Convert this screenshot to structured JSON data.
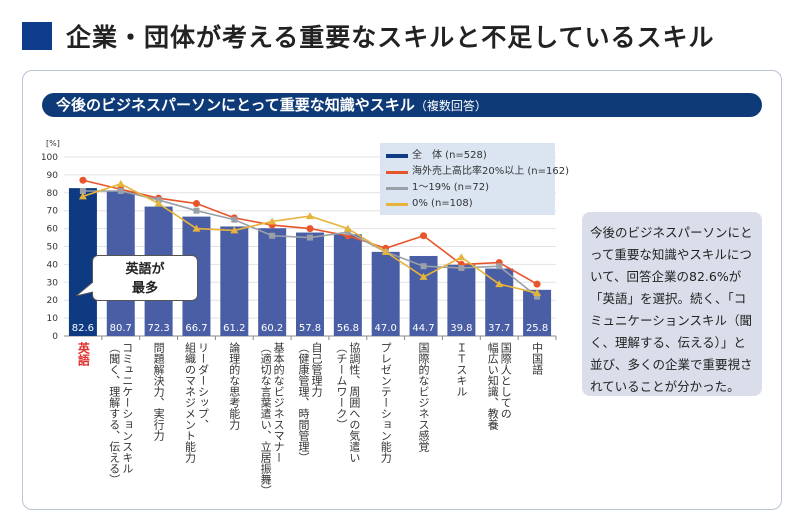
{
  "page_title": "企業・団体が考える重要なスキルと不足しているスキル",
  "section": {
    "title": "今後のビジネスパーソンにとって重要な知識やスキル",
    "suffix": "（複数回答）"
  },
  "callout": {
    "line1": "英語が",
    "line2": "最多"
  },
  "note": "今後のビジネスパーソンにとって重要な知識やスキルについて、回答企業の82.6%が「英語」を選択。続く、「コミュニケーションスキル（聞く、理解する、伝える）」と並び、多くの企業で重要視されていることが分かった。",
  "chart_data": {
    "type": "bar",
    "ylabel": "[%]",
    "ylim": [
      0,
      100
    ],
    "yticks": [
      0,
      10,
      20,
      30,
      40,
      50,
      60,
      70,
      80,
      90,
      100
    ],
    "grid": true,
    "legend_position": "top-right",
    "categories": [
      [
        "英語"
      ],
      [
        "コミュニケーションスキル",
        "（聞く、理解する、伝える）"
      ],
      [
        "問題解決力、実行力"
      ],
      [
        "リーダーシップ、",
        "組織のマネジメント能力"
      ],
      [
        "論理的な思考能力"
      ],
      [
        "基本的なビジネスマナー",
        "（適切な言葉遣い、立居振舞）"
      ],
      [
        "自己管理力",
        "（健康管理、時間管理）"
      ],
      [
        "協調性、周囲への気遣い",
        "（チームワーク）"
      ],
      [
        "プレゼンテーション能力"
      ],
      [
        "国際的なビジネス感覚"
      ],
      [
        "ＩＴスキル"
      ],
      [
        "国際人としての",
        "幅広い知識、教養"
      ],
      [
        "中国語"
      ]
    ],
    "series": [
      {
        "name": "全　体 (n=528)",
        "kind": "bar",
        "color": "#4a5ea6",
        "highlight_color": "#0d3a80",
        "values": [
          82.6,
          80.7,
          72.3,
          66.7,
          61.2,
          60.2,
          57.8,
          56.8,
          47.0,
          44.7,
          39.8,
          37.7,
          25.8
        ]
      },
      {
        "name": "海外売上高比率20%以上 (n=162)",
        "kind": "line",
        "marker": "circle",
        "color": "#e8552a",
        "values": [
          87,
          82,
          77,
          74,
          66,
          62,
          60,
          56,
          49,
          56,
          40,
          41,
          29
        ]
      },
      {
        "name": "1～19% (n=72)",
        "kind": "line",
        "marker": "square",
        "color": "#9aa0a8",
        "values": [
          81,
          81,
          76,
          70,
          65,
          56,
          55,
          58,
          47,
          39,
          38,
          39,
          22
        ]
      },
      {
        "name": "0% (n=108)",
        "kind": "line",
        "marker": "triangle",
        "color": "#e6b43c",
        "values": [
          78,
          85,
          74,
          60,
          59,
          64,
          67,
          60,
          47,
          33,
          44,
          29,
          24
        ]
      }
    ]
  }
}
